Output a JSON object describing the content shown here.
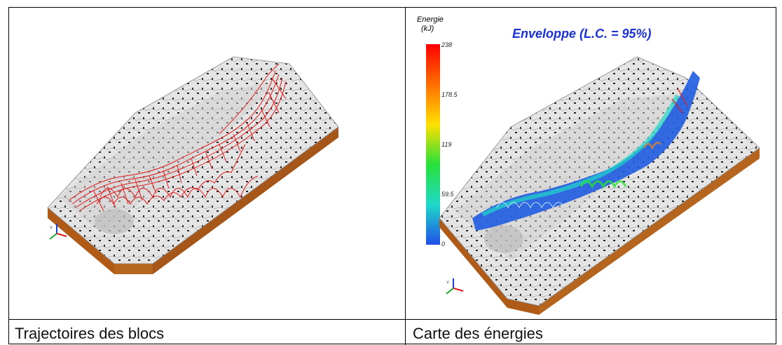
{
  "left_panel": {
    "caption": "Trajectoires des blocs",
    "image_name": "3d-terrain-trajectories",
    "trajectory_color": "#e21b1b"
  },
  "right_panel": {
    "caption": "Carte des énergies",
    "title": "Enveloppe (L.C. = 95%)",
    "legend_title_line1": "Energie",
    "legend_title_line2": "(kJ)",
    "legend_ticks": [
      "238",
      "178.5",
      "119",
      "59.5",
      "0"
    ],
    "colorbar_colors": [
      "#ff0000",
      "#ff8a00",
      "#ffe000",
      "#27e03a",
      "#1fd9c9",
      "#1f4fe8"
    ]
  },
  "colors": {
    "terrain_side": "#b5651d",
    "terrain_top": "#d9d9d9",
    "energy_low": "#1f5be0"
  }
}
